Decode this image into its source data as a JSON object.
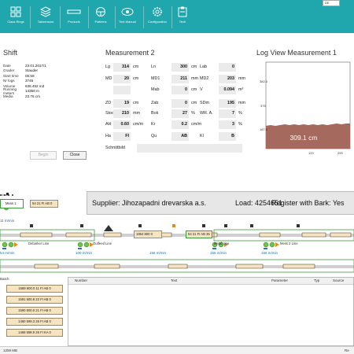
{
  "toolbar": {
    "items": [
      {
        "label": "Class Rings",
        "icon": "class-rings-icon"
      },
      {
        "label": "Tabsensors",
        "icon": "layers-icon"
      },
      {
        "label": "Products",
        "icon": "products-icon"
      },
      {
        "label": "Patterns",
        "icon": "patterns-icon"
      },
      {
        "label": "Text Manual",
        "icon": "eye-icon"
      },
      {
        "label": "Configuration",
        "icon": "gear-icon"
      },
      {
        "label": "Tech",
        "icon": "clipboard-icon"
      }
    ],
    "language": "DE",
    "accent": "#1fa7ad"
  },
  "shift": {
    "title": "Shift",
    "rows": [
      {
        "key": "Date",
        "value": "23.01.2017/1"
      },
      {
        "key": "Grader",
        "value": "Stauder"
      },
      {
        "key": "Start time",
        "value": "05:59"
      },
      {
        "key": "Nr logs",
        "value": "3745"
      },
      {
        "key": "Volume",
        "value": "636.452 m3"
      },
      {
        "key": "Running meters",
        "value": "14356 m"
      },
      {
        "key": "Media",
        "value": "23.76 cm"
      }
    ],
    "begin_label": "Begin",
    "close_label": "Close"
  },
  "measurement": {
    "title": "Measurement 2",
    "rows": [
      [
        {
          "l": "Lg",
          "v": "314",
          "u": "cm"
        },
        {
          "l": "Ln",
          "v": "300",
          "u": "cm"
        },
        {
          "l": "Lab",
          "v": "0",
          "u": ""
        }
      ],
      [
        {
          "l": "MD",
          "v": "20",
          "u": "cm"
        },
        {
          "l": "MD1",
          "v": "211",
          "u": "mm"
        },
        {
          "l": "MD2",
          "v": "203",
          "u": "mm"
        }
      ],
      [
        {
          "l": "",
          "v": "",
          "u": ""
        },
        {
          "l": "Mab",
          "v": "0",
          "u": "cm"
        },
        {
          "l": "V",
          "v": "0.094",
          "u": "m³"
        }
      ],
      [
        {
          "l": "ZD",
          "v": "19",
          "u": "cm"
        },
        {
          "l": "Zab",
          "v": "0",
          "u": "cm"
        },
        {
          "l": "SDm",
          "v": "195",
          "u": "mm"
        }
      ],
      [
        {
          "l": "Stock",
          "v": "210",
          "u": "mm"
        },
        {
          "l": "Bok",
          "v": "27",
          "u": "%"
        },
        {
          "l": "WR. A.",
          "v": "7",
          "u": "%"
        }
      ],
      [
        {
          "l": "AH",
          "v": "0.60",
          "u": "cm/m"
        },
        {
          "l": "Kr",
          "v": "0.2",
          "u": "cm/m"
        },
        {
          "l": "",
          "v": "3",
          "u": "%"
        }
      ],
      [
        {
          "l": "Ha",
          "v": "FI",
          "u": ""
        },
        {
          "l": "Qu",
          "v": "AB",
          "u": ""
        },
        {
          "l": "Kl",
          "v": "B",
          "u": ""
        }
      ]
    ],
    "schnittbild_label": "Schnittbild"
  },
  "logview": {
    "title": "Log View Measurement 1",
    "center_value": "309.1 cm",
    "y_ticks": [
      "382.0",
      "375",
      "187.0"
    ],
    "x_ticks": [
      "120",
      "200"
    ],
    "fill_color": "#a5695e"
  },
  "line": {
    "mess1_label": "Mess 1",
    "tag1": "54 21 FI AB 0",
    "speed_top": "11 m/min",
    "supplier_label": "Supplier: Jihozapadni drevarska a.s.",
    "load_label": "Load: 4254651",
    "bark_label": "Register with Bark: Yes",
    "center_tag": "1954 800 0",
    "tag2": "54 21 FI AB 35",
    "stations": [
      {
        "label": "Debarker Line",
        "speed": "54 m/min"
      },
      {
        "label": "Outfeed Line",
        "speed": "100 m/min"
      },
      {
        "label": "",
        "speed": "156 m/min"
      },
      {
        "label": "Metal Line",
        "speed": "156 m/min"
      },
      {
        "label": "Mess 2 Line",
        "speed": "156 m/min"
      }
    ]
  },
  "batch": {
    "title": "Batch",
    "rows": [
      "1589 600.0 11 FI AB 0",
      "1591 600.8 22 FI AB 0",
      "1590 600.0 21 FI AB 0",
      "1460 599.3 26 FI AB 0",
      "1469 598.9 26 FI KA 0"
    ]
  },
  "messages": {
    "columns": [
      "Number",
      "Text",
      "Parameter",
      "Typ",
      "Source"
    ]
  },
  "status": {
    "memory": "1259 MB",
    "right": "Re"
  }
}
